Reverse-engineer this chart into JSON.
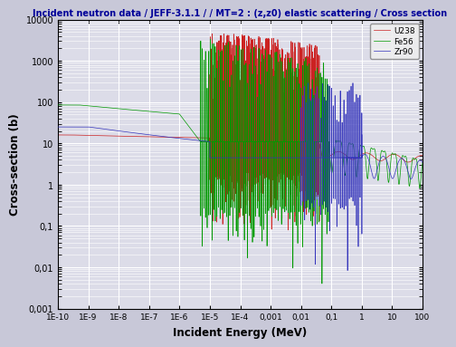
{
  "title": "Incident neutron data / JEFF-3.1.1 / / MT=2 : (z,z0) elastic scattering / Cross section",
  "xlabel": "Incident Energy (MeV)",
  "ylabel": "Cross-section (b)",
  "colors": {
    "Zr90": "#3333bb",
    "Fe56": "#009900",
    "U238": "#cc2222"
  },
  "legend_labels": [
    "Zr90",
    "Fe56",
    "U238"
  ],
  "bg_color": "#dcdce8",
  "grid_color": "#ffffff",
  "title_color": "#000099",
  "title_fontsize": 7.0,
  "label_fontsize": 8.5,
  "tick_fontsize": 7.0,
  "lw": 0.5
}
